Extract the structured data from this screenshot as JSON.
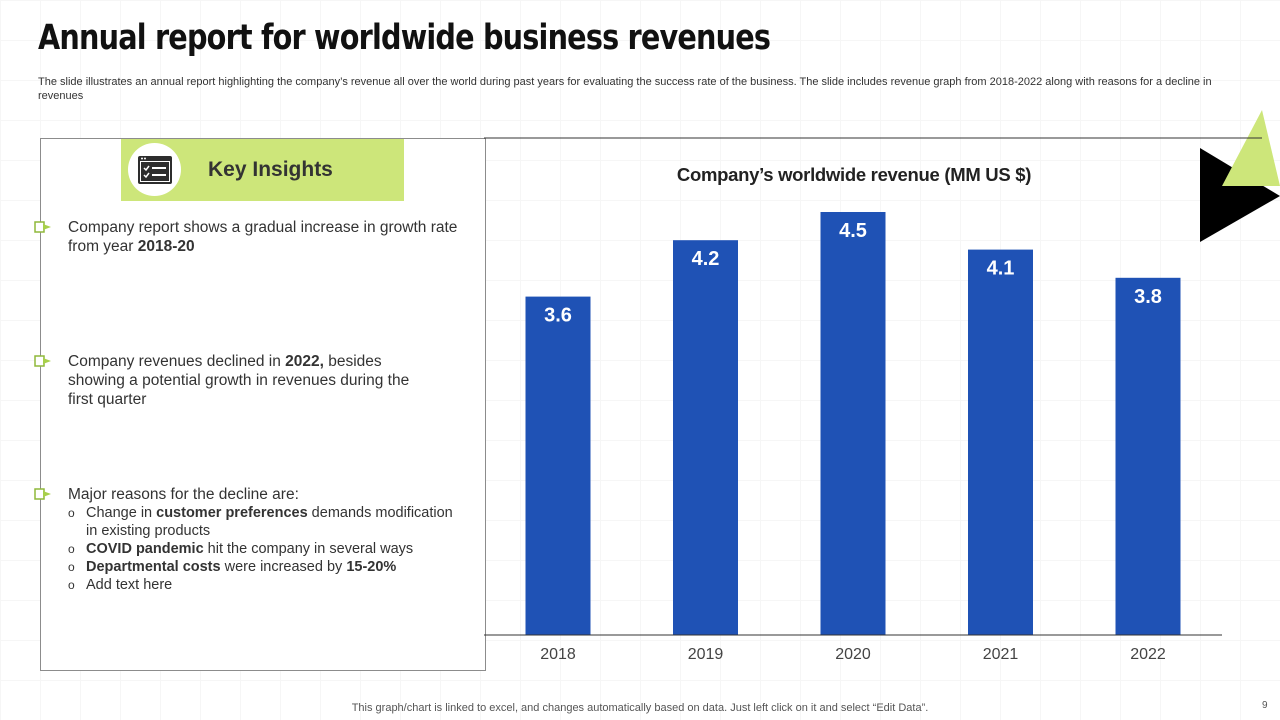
{
  "slide": {
    "title": "Annual report for worldwide business revenues",
    "subtitle": "The slide illustrates an annual report highlighting the company’s revenue all over the world during past years for evaluating the success rate of the business. The slide includes revenue graph from 2018-2022 along with reasons for a decline in revenues",
    "footer_note": "This graph/chart is linked to excel,  and changes automatically based on data. Just left click on it and select “Edit Data”.",
    "page_number": "9"
  },
  "insights": {
    "header": "Key Insights",
    "icon": "checklist-icon",
    "bullet1": {
      "text_a": "Company report shows a gradual increase in growth rate from year ",
      "bold_a": "2018-20"
    },
    "bullet2": {
      "text_a": "Company revenues declined in ",
      "bold_a": "2022,",
      "text_b": " besides showing a potential growth in revenues during the first quarter"
    },
    "bullet3": {
      "intro": "Major reasons for the decline are:",
      "sub1_text_a": "Change in ",
      "sub1_bold": "customer preferences",
      "sub1_text_b": " demands modification in existing products",
      "sub2_bold": "COVID pandemic",
      "sub2_text": " hit the company in several ways",
      "sub3_bold_a": "Departmental costs",
      "sub3_text": " were increased by ",
      "sub3_bold_b": "15-20%",
      "sub4_text": "Add text here"
    }
  },
  "colors": {
    "accent_green": "#cde67a",
    "bar_blue": "#1f52b5",
    "black": "#000000"
  },
  "chart_data": {
    "type": "bar",
    "title": "Company’s worldwide revenue (MM US $)",
    "categories": [
      "2018",
      "2019",
      "2020",
      "2021",
      "2022"
    ],
    "values": [
      3.6,
      4.2,
      4.5,
      4.1,
      3.8
    ],
    "value_labels": [
      "3.6",
      "4.2",
      "4.5",
      "4.1",
      "3.8"
    ],
    "xlabel": "",
    "ylabel": "",
    "ylim": [
      0,
      5
    ],
    "grid": false,
    "legend": "none"
  }
}
